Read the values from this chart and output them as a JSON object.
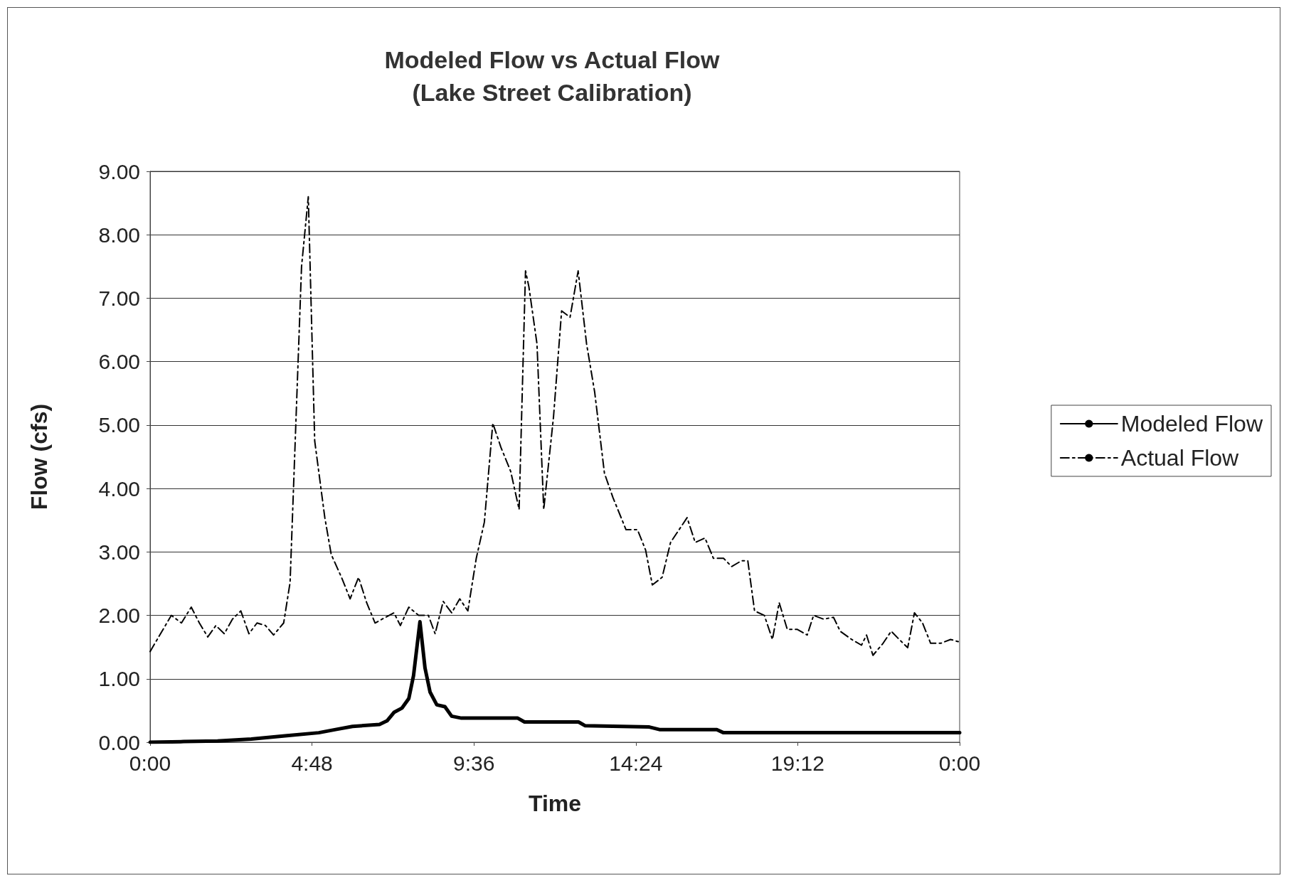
{
  "chart_data": {
    "type": "line",
    "title": "Modeled Flow vs Actual Flow\n(Lake Street Calibration)",
    "xlabel": "Time",
    "ylabel": "Flow (cfs)",
    "xlim": [
      0,
      24
    ],
    "xticks": [
      {
        "value": 0,
        "label": "0:00"
      },
      {
        "value": 4.8,
        "label": "4:48"
      },
      {
        "value": 9.6,
        "label": "9:36"
      },
      {
        "value": 14.4,
        "label": "14:24"
      },
      {
        "value": 19.2,
        "label": "19:12"
      },
      {
        "value": 24,
        "label": "0:00"
      }
    ],
    "ylim": [
      0,
      9
    ],
    "yticks": [
      {
        "value": 0,
        "label": "0.00"
      },
      {
        "value": 1,
        "label": "1.00"
      },
      {
        "value": 2,
        "label": "2.00"
      },
      {
        "value": 3,
        "label": "3.00"
      },
      {
        "value": 4,
        "label": "4.00"
      },
      {
        "value": 5,
        "label": "5.00"
      },
      {
        "value": 6,
        "label": "6.00"
      },
      {
        "value": 7,
        "label": "7.00"
      },
      {
        "value": 8,
        "label": "8.00"
      },
      {
        "value": 9,
        "label": "9.00"
      }
    ],
    "grid": "y",
    "legend": "right",
    "marker": "none",
    "series": [
      {
        "name": "Modeled Flow",
        "color": "#000000",
        "line_style": "solid",
        "x": [
          0,
          1,
          2,
          3,
          4,
          5,
          5.5,
          6,
          6.8,
          7.03,
          7.23,
          7.47,
          7.67,
          7.81,
          8.0,
          8.15,
          8.3,
          8.5,
          8.74,
          8.94,
          9.23,
          10.2,
          10.9,
          11.1,
          12.7,
          12.9,
          14.8,
          15.1,
          16.8,
          17.0,
          24
        ],
        "values": [
          0,
          0.01,
          0.02,
          0.05,
          0.1,
          0.15,
          0.2,
          0.25,
          0.28,
          0.34,
          0.47,
          0.54,
          0.69,
          1.05,
          1.9,
          1.17,
          0.79,
          0.59,
          0.56,
          0.41,
          0.38,
          0.38,
          0.38,
          0.32,
          0.32,
          0.26,
          0.24,
          0.2,
          0.2,
          0.15,
          0.15
        ]
      },
      {
        "name": "Actual Flow",
        "color": "#000000",
        "line_style": "dashed",
        "x": [
          0,
          0.63,
          0.93,
          1.22,
          1.46,
          1.71,
          1.95,
          2.2,
          2.44,
          2.69,
          2.93,
          3.17,
          3.42,
          3.66,
          3.96,
          4.15,
          4.49,
          4.69,
          4.88,
          5.18,
          5.37,
          5.69,
          5.93,
          6.18,
          6.42,
          6.67,
          6.98,
          7.23,
          7.42,
          7.67,
          7.96,
          8.25,
          8.45,
          8.69,
          8.94,
          9.18,
          9.42,
          9.67,
          9.91,
          10.16,
          10.4,
          10.69,
          10.94,
          11.13,
          11.23,
          11.47,
          11.67,
          11.96,
          12.2,
          12.45,
          12.69,
          12.94,
          13.18,
          13.47,
          13.72,
          14.11,
          14.45,
          14.69,
          14.89,
          15.18,
          15.43,
          15.92,
          16.16,
          16.45,
          16.7,
          17.0,
          17.24,
          17.53,
          17.72,
          17.92,
          18.21,
          18.45,
          18.65,
          18.89,
          19.18,
          19.48,
          19.67,
          19.97,
          20.26,
          20.46,
          20.8,
          21.09,
          21.24,
          21.43,
          21.73,
          21.97,
          22.21,
          22.46,
          22.66,
          22.9,
          23.14,
          23.44,
          23.73,
          24
        ],
        "values": [
          1.43,
          2.0,
          1.88,
          2.13,
          1.88,
          1.66,
          1.84,
          1.71,
          1.94,
          2.07,
          1.71,
          1.88,
          1.84,
          1.69,
          1.88,
          2.52,
          7.5,
          8.6,
          4.75,
          3.54,
          2.96,
          2.58,
          2.26,
          2.6,
          2.2,
          1.88,
          1.97,
          2.04,
          1.84,
          2.13,
          2.0,
          2.0,
          1.71,
          2.22,
          2.04,
          2.26,
          2.07,
          2.9,
          3.47,
          5.03,
          4.65,
          4.27,
          3.67,
          7.43,
          7.18,
          6.28,
          3.67,
          5.13,
          6.8,
          6.7,
          7.43,
          6.28,
          5.52,
          4.24,
          3.86,
          3.35,
          3.35,
          3.03,
          2.48,
          2.6,
          3.15,
          3.54,
          3.15,
          3.22,
          2.9,
          2.9,
          2.77,
          2.86,
          2.86,
          2.07,
          2.0,
          1.62,
          2.2,
          1.78,
          1.78,
          1.69,
          2.0,
          1.94,
          1.97,
          1.75,
          1.62,
          1.53,
          1.69,
          1.37,
          1.56,
          1.75,
          1.62,
          1.49,
          2.04,
          1.88,
          1.56,
          1.56,
          1.62,
          1.58
        ]
      }
    ]
  }
}
